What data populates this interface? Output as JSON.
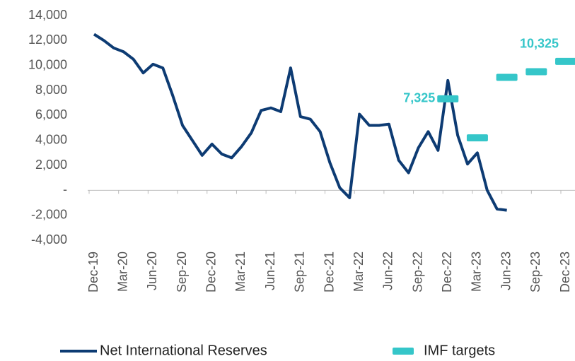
{
  "chart_data": {
    "type": "line",
    "categories": [
      "Dec-19",
      null,
      null,
      "Mar-20",
      null,
      null,
      "Jun-20",
      null,
      null,
      "Sep-20",
      null,
      null,
      "Dec-20",
      null,
      null,
      "Mar-21",
      null,
      null,
      "Jun-21",
      null,
      null,
      "Sep-21",
      null,
      null,
      "Dec-21",
      null,
      null,
      "Mar-22",
      null,
      null,
      "Jun-22",
      null,
      null,
      "Sep-22",
      null,
      null,
      "Dec-22",
      null,
      null,
      "Mar-23",
      null,
      null,
      "Jun-23",
      null,
      null,
      "Sep-23",
      null,
      null,
      "Dec-23"
    ],
    "series": [
      {
        "name": "Net International Reserves",
        "color": "#0d3b73",
        "style": "line",
        "values": [
          12500,
          12000,
          11400,
          11100,
          10500,
          9400,
          10100,
          9800,
          7600,
          5200,
          4000,
          2800,
          3700,
          2900,
          2600,
          3500,
          4600,
          6400,
          6600,
          6300,
          9800,
          5900,
          5700,
          4700,
          2200,
          200,
          -600,
          6100,
          5200,
          5200,
          5300,
          2400,
          1400,
          3400,
          4700,
          3200,
          8800,
          4400,
          2100,
          3000,
          0,
          -1500,
          -1600,
          null,
          null,
          null,
          null,
          null,
          null
        ]
      },
      {
        "name": "IMF targets",
        "color": "#35c6c9",
        "style": "dash",
        "values": [
          null,
          null,
          null,
          null,
          null,
          null,
          null,
          null,
          null,
          null,
          null,
          null,
          null,
          null,
          null,
          null,
          null,
          null,
          null,
          null,
          null,
          null,
          null,
          null,
          null,
          null,
          null,
          null,
          null,
          null,
          null,
          null,
          null,
          null,
          null,
          null,
          7325,
          null,
          null,
          4200,
          null,
          null,
          9050,
          null,
          null,
          9500,
          null,
          null,
          10325
        ],
        "value_labels": [
          null,
          null,
          null,
          null,
          null,
          null,
          null,
          null,
          null,
          null,
          null,
          null,
          null,
          null,
          null,
          null,
          null,
          null,
          null,
          null,
          null,
          null,
          null,
          null,
          null,
          null,
          null,
          null,
          null,
          null,
          null,
          null,
          null,
          null,
          null,
          null,
          "7,325",
          null,
          null,
          null,
          null,
          null,
          null,
          null,
          null,
          null,
          null,
          null,
          "10,325"
        ]
      }
    ],
    "ylim": [
      -4000,
      14000
    ],
    "yticks": [
      {
        "value": -4000,
        "label": "-4,000"
      },
      {
        "value": -2000,
        "label": "-2,000"
      },
      {
        "value": 0,
        "label": "-"
      },
      {
        "value": 2000,
        "label": "2,000"
      },
      {
        "value": 4000,
        "label": "4,000"
      },
      {
        "value": 6000,
        "label": "6,000"
      },
      {
        "value": 8000,
        "label": "8,000"
      },
      {
        "value": 10000,
        "label": "10,000"
      },
      {
        "value": 12000,
        "label": "12,000"
      },
      {
        "value": 14000,
        "label": "14,000"
      }
    ],
    "grid": false,
    "legend": "bottom"
  }
}
